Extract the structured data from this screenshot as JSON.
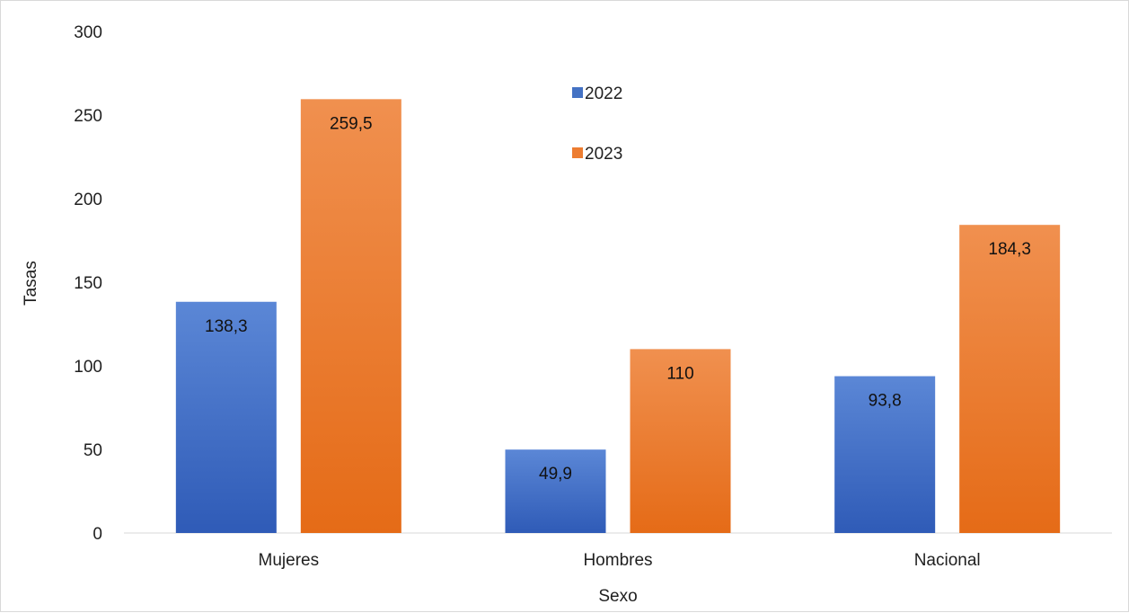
{
  "chart_data": {
    "type": "bar",
    "categories": [
      "Mujeres",
      "Hombres",
      "Nacional"
    ],
    "series": [
      {
        "name": "2022",
        "values": [
          138.3,
          49.9,
          93.8
        ],
        "labels": [
          "138,3",
          "49,9",
          "93,8"
        ],
        "color": "#4472c4",
        "color_light": "#5b87d6",
        "color_dark": "#2f5bb7"
      },
      {
        "name": "2023",
        "values": [
          259.5,
          110,
          184.3
        ],
        "labels": [
          "259,5",
          "110",
          "184,3"
        ],
        "color": "#ed7d31",
        "color_light": "#f0904f",
        "color_dark": "#e56b17"
      }
    ],
    "title": "",
    "xlabel": "Sexo",
    "ylabel": "Tasas",
    "ylim": [
      0,
      300
    ],
    "yticks": [
      0,
      50,
      100,
      150,
      200,
      250,
      300
    ],
    "grid": false,
    "legend_position": "top-center"
  }
}
